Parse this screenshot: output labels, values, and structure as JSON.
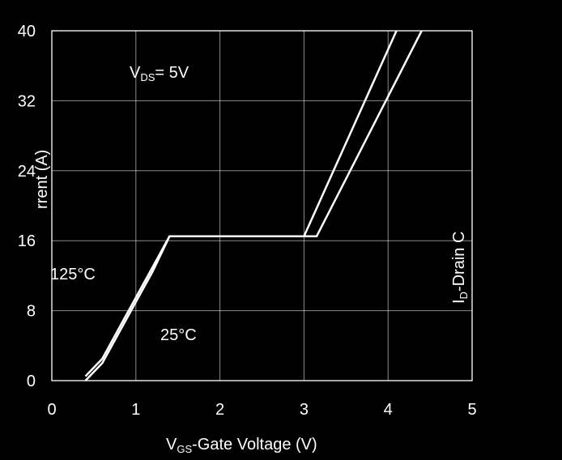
{
  "chart_data": {
    "type": "line",
    "title": "",
    "xlabel": "V_GS-Gate Voltage (V)",
    "xlabel_main": "V",
    "xlabel_sub": "GS",
    "xlabel_rest": "-Gate Voltage (V)",
    "ylabel": "I_D-Drain Current (A)",
    "ylabel_left_text": "rrent (A)",
    "ylabel_right_main": "I",
    "ylabel_right_sub": "D",
    "ylabel_right_rest": "-Drain C",
    "xlim": [
      0,
      5
    ],
    "ylim": [
      0,
      40
    ],
    "x_ticks": [
      "0",
      "1",
      "2",
      "3",
      "4",
      "5"
    ],
    "y_ticks": [
      "0",
      "8",
      "16",
      "24",
      "32",
      "40"
    ],
    "grid": true,
    "annotation": {
      "main": "V",
      "sub": "DS",
      "rest": "= 5V"
    },
    "series": [
      {
        "name": "125°C",
        "x": [
          0.4,
          0.6,
          0.8,
          1.0,
          1.2,
          1.4,
          3.0,
          4.1
        ],
        "y": [
          0.5,
          2.5,
          6.0,
          9.5,
          13.0,
          16.5,
          16.5,
          40.0
        ]
      },
      {
        "name": "25°C",
        "x": [
          0.4,
          0.6,
          0.8,
          1.0,
          1.2,
          1.4,
          3.15,
          4.4
        ],
        "y": [
          0.0,
          2.0,
          5.5,
          9.0,
          12.5,
          16.5,
          16.5,
          40.0
        ]
      }
    ]
  }
}
